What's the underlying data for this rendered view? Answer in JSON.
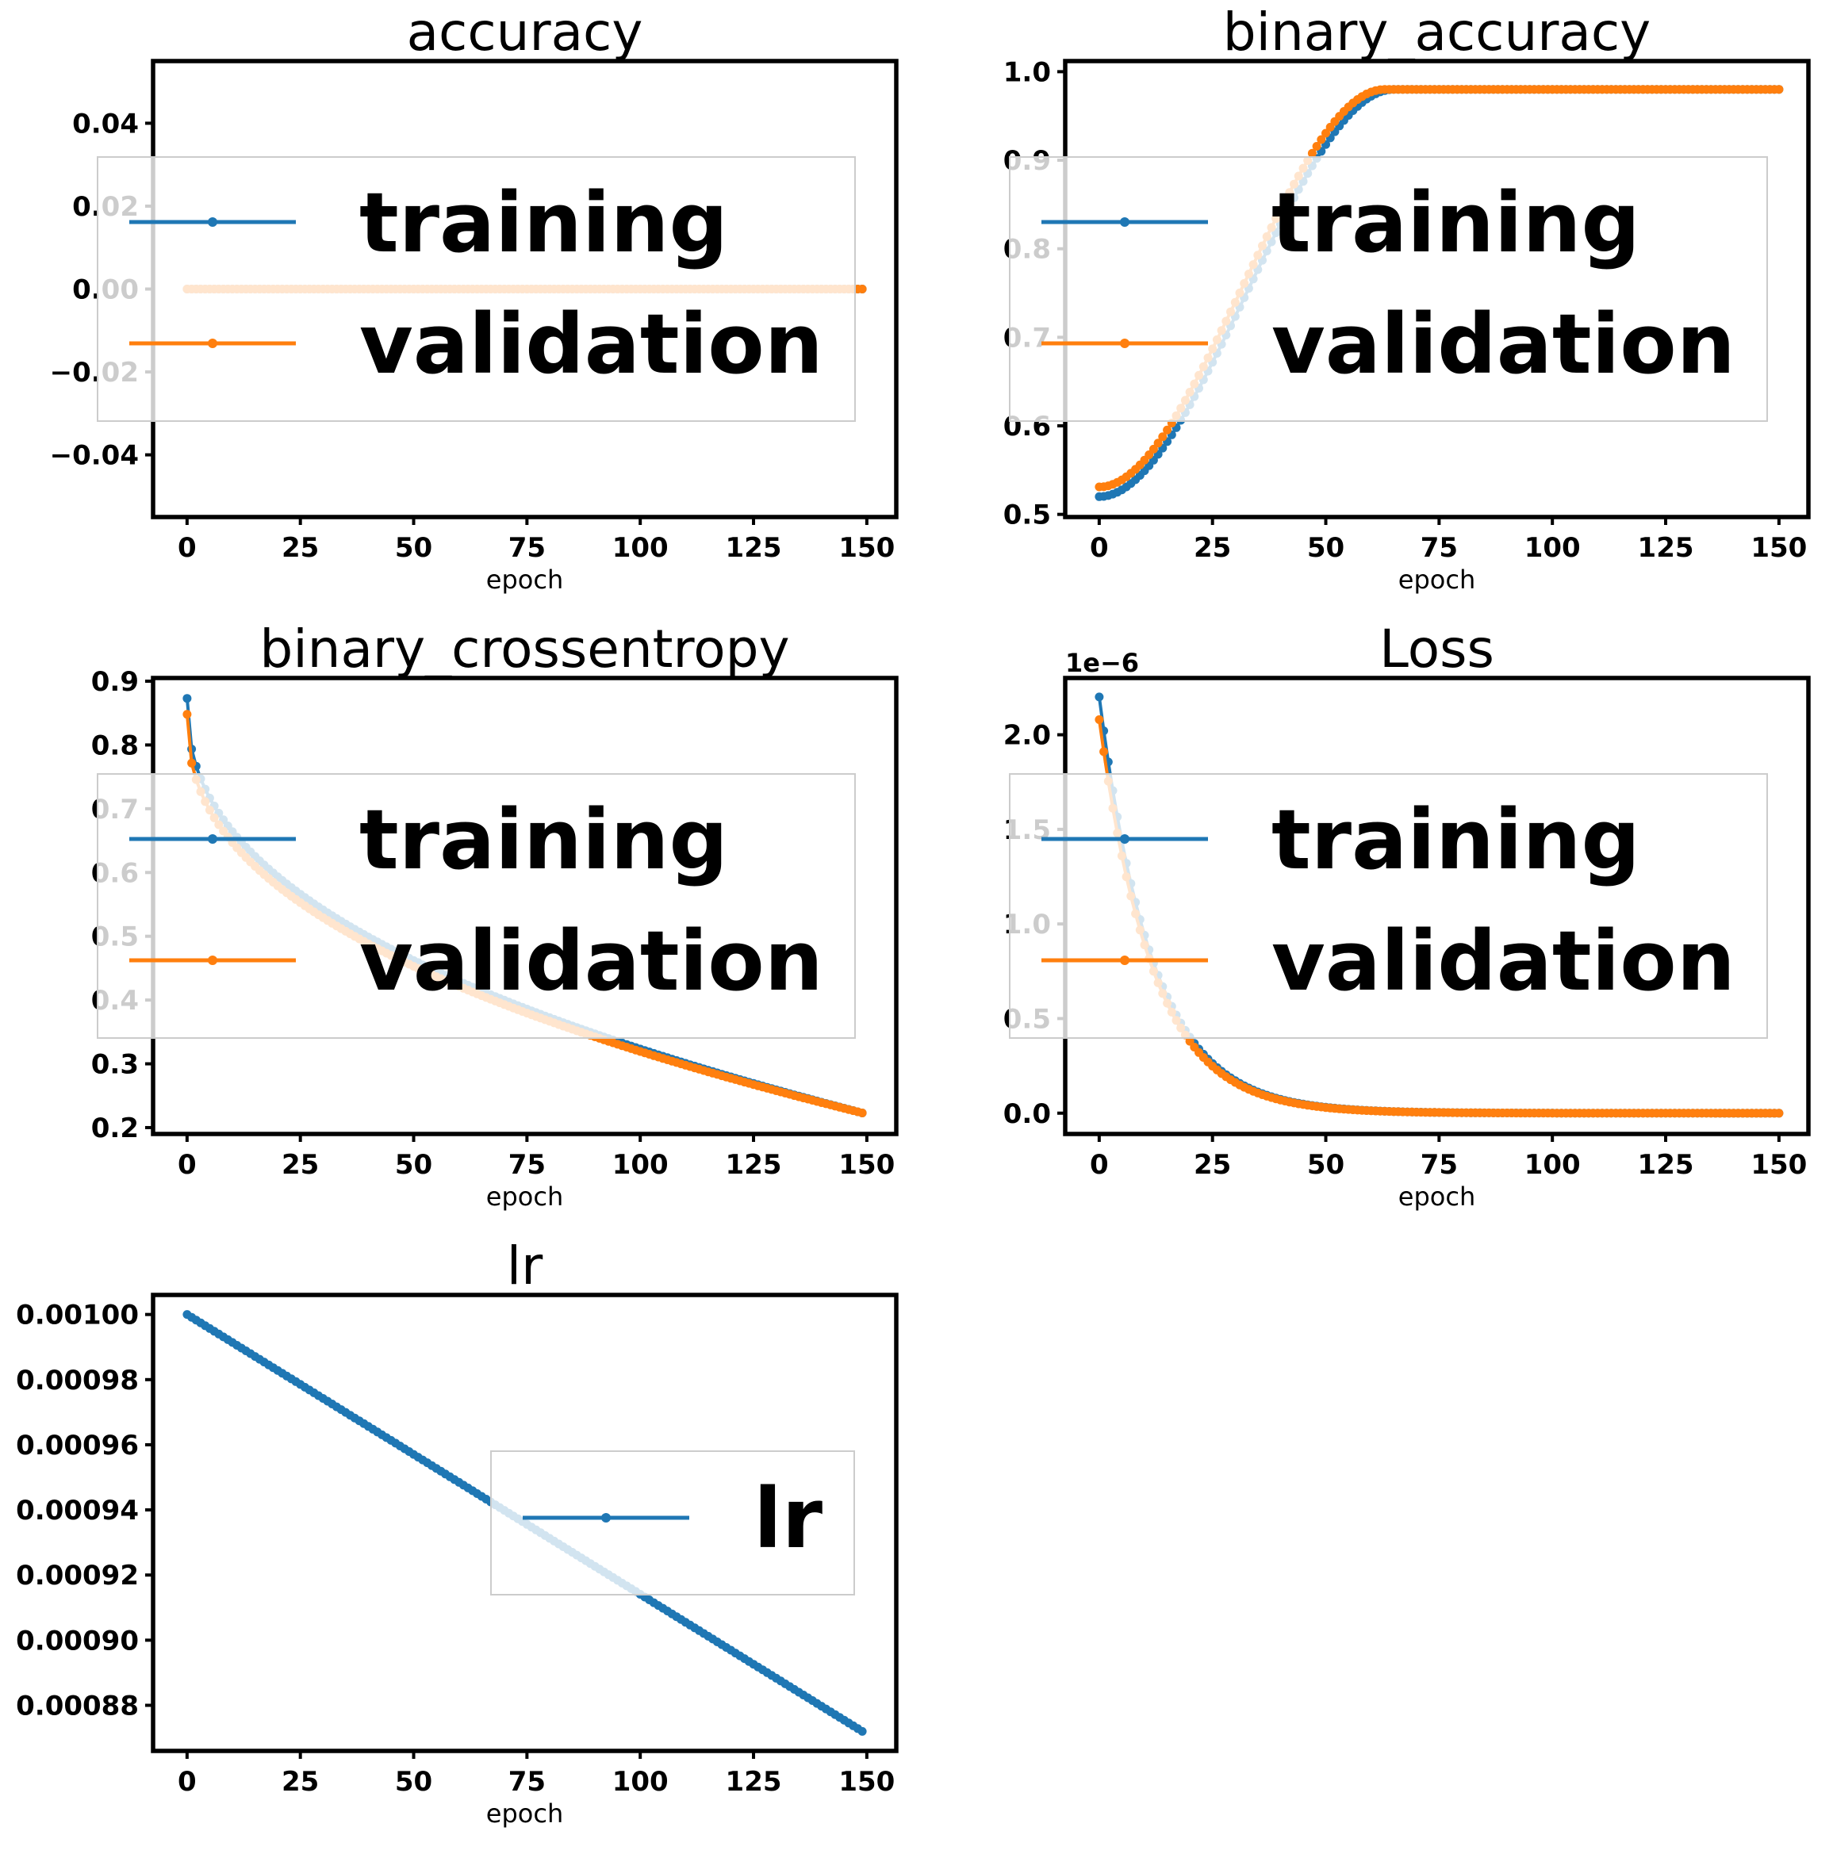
{
  "colors": {
    "training": "#1f77b4",
    "validation": "#ff7f0e"
  },
  "chart_data": [
    {
      "type": "line",
      "title": "accuracy",
      "xlabel": "epoch",
      "ylabel": "",
      "xlim": [
        -7.5,
        156.5
      ],
      "ylim": [
        -0.055,
        0.055
      ],
      "xticks": [
        0,
        25,
        50,
        75,
        100,
        125,
        150
      ],
      "xtick_labels": [
        "0",
        "25",
        "50",
        "75",
        "100",
        "125",
        "150"
      ],
      "yticks": [
        -0.04,
        -0.02,
        0.0,
        0.02,
        0.04
      ],
      "ytick_labels": [
        "−0.04",
        "−0.02",
        "0.00",
        "0.02",
        "0.04"
      ],
      "offset_text": "",
      "legend_position": "center",
      "series": [
        {
          "name": "training",
          "color_key": "training",
          "shape": "constant",
          "n": 150,
          "value": 0.0
        },
        {
          "name": "validation",
          "color_key": "validation",
          "shape": "constant",
          "n": 150,
          "value": 0.0
        }
      ]
    },
    {
      "type": "line",
      "title": "binary_accuracy",
      "xlabel": "epoch",
      "ylabel": "",
      "xlim": [
        -7.5,
        156.5
      ],
      "ylim": [
        0.497,
        1.012
      ],
      "xticks": [
        0,
        25,
        50,
        75,
        100,
        125,
        150
      ],
      "xtick_labels": [
        "0",
        "25",
        "50",
        "75",
        "100",
        "125",
        "150"
      ],
      "yticks": [
        0.5,
        0.6,
        0.7,
        0.8,
        0.9,
        1.0
      ],
      "ytick_labels": [
        "0.5",
        "0.6",
        "0.7",
        "0.8",
        "0.9",
        "1.0"
      ],
      "offset_text": "",
      "legend_position": "center",
      "series": [
        {
          "name": "training",
          "color_key": "training",
          "shape": "smoothstep",
          "n": 151,
          "start": 0.52,
          "end": 0.98,
          "t_end": 65,
          "power": 1.0
        },
        {
          "name": "validation",
          "color_key": "validation",
          "shape": "smoothstep",
          "n": 151,
          "start": 0.531,
          "end": 0.98,
          "t_end": 63,
          "power": 1.0
        }
      ]
    },
    {
      "type": "line",
      "title": "binary_crossentropy",
      "xlabel": "epoch",
      "ylabel": "",
      "xlim": [
        -7.5,
        156.5
      ],
      "ylim": [
        0.19,
        0.905
      ],
      "xticks": [
        0,
        25,
        50,
        75,
        100,
        125,
        150
      ],
      "xtick_labels": [
        "0",
        "25",
        "50",
        "75",
        "100",
        "125",
        "150"
      ],
      "yticks": [
        0.2,
        0.3,
        0.4,
        0.5,
        0.6,
        0.7,
        0.8,
        0.9
      ],
      "ytick_labels": [
        "0.2",
        "0.3",
        "0.4",
        "0.5",
        "0.6",
        "0.7",
        "0.8",
        "0.9"
      ],
      "offset_text": "",
      "legend_position": "center",
      "series": [
        {
          "name": "training",
          "color_key": "training",
          "shape": "power",
          "n": 150,
          "start": 0.873,
          "end": 0.223,
          "exponent": 0.42
        },
        {
          "name": "validation",
          "color_key": "validation",
          "shape": "power",
          "n": 150,
          "start": 0.848,
          "end": 0.223,
          "exponent": 0.42
        }
      ]
    },
    {
      "type": "line",
      "title": "Loss",
      "xlabel": "epoch",
      "ylabel": "",
      "xlim": [
        -7.5,
        156.5
      ],
      "ylim": [
        -0.11,
        2.3
      ],
      "xticks": [
        0,
        25,
        50,
        75,
        100,
        125,
        150
      ],
      "xtick_labels": [
        "0",
        "25",
        "50",
        "75",
        "100",
        "125",
        "150"
      ],
      "yticks": [
        0.0,
        0.5,
        1.0,
        1.5,
        2.0
      ],
      "ytick_labels": [
        "0.0",
        "0.5",
        "1.0",
        "1.5",
        "2.0"
      ],
      "offset_text": "1e−6",
      "legend_position": "center",
      "series": [
        {
          "name": "training",
          "color_key": "training",
          "shape": "exp",
          "n": 151,
          "start": 2.2,
          "end": 0.0,
          "rate": 0.085
        },
        {
          "name": "validation",
          "color_key": "validation",
          "shape": "exp",
          "n": 151,
          "start": 2.08,
          "end": 0.0,
          "rate": 0.085
        }
      ]
    },
    {
      "type": "line",
      "title": "lr",
      "xlabel": "epoch",
      "ylabel": "",
      "xlim": [
        -7.5,
        156.5
      ],
      "ylim": [
        0.000866,
        0.001006
      ],
      "xticks": [
        0,
        25,
        50,
        75,
        100,
        125,
        150
      ],
      "xtick_labels": [
        "0",
        "25",
        "50",
        "75",
        "100",
        "125",
        "150"
      ],
      "yticks": [
        0.00088,
        0.0009,
        0.00092,
        0.00094,
        0.00096,
        0.00098,
        0.001
      ],
      "ytick_labels": [
        "0.00088",
        "0.00090",
        "0.00092",
        "0.00094",
        "0.00096",
        "0.00098",
        "0.00100"
      ],
      "offset_text": "",
      "legend_position": "center-right",
      "series": [
        {
          "name": "lr",
          "color_key": "training",
          "shape": "linear",
          "n": 150,
          "start": 0.001,
          "end": 0.000872
        }
      ]
    }
  ]
}
